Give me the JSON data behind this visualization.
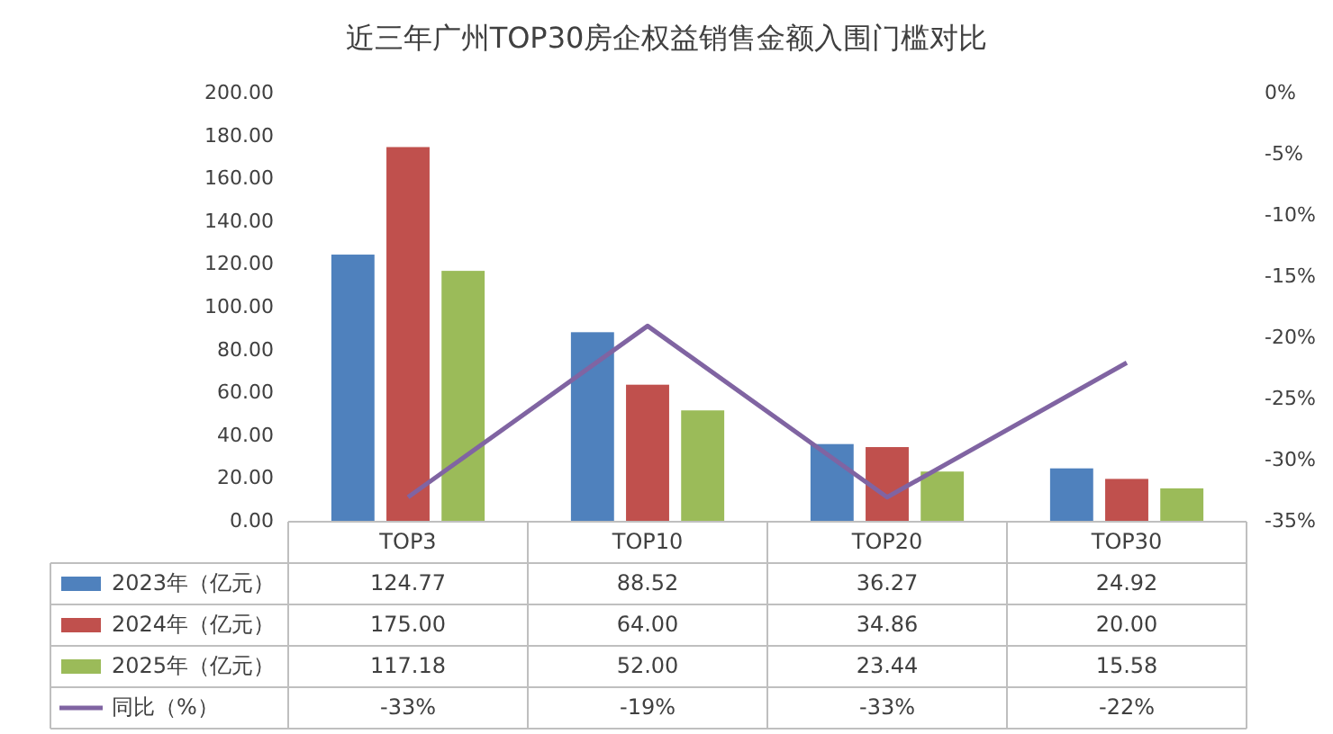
{
  "chart_data": {
    "type": "bar",
    "title": "近三年广州TOP30房企权益销售金额入围门槛对比",
    "categories": [
      "TOP3",
      "TOP10",
      "TOP20",
      "TOP30"
    ],
    "series": [
      {
        "name": "2023年（亿元）",
        "color": "#4f81bd",
        "values": [
          124.77,
          88.52,
          36.27,
          24.92
        ],
        "value_labels": [
          "124.77",
          "88.52",
          "36.27",
          "24.92"
        ]
      },
      {
        "name": "2024年（亿元）",
        "color": "#c0504d",
        "values": [
          175.0,
          64.0,
          34.86,
          20.0
        ],
        "value_labels": [
          "175.00",
          "64.00",
          "34.86",
          "20.00"
        ]
      },
      {
        "name": "2025年（亿元）",
        "color": "#9bbb59",
        "values": [
          117.18,
          52.0,
          23.44,
          15.58
        ],
        "value_labels": [
          "117.18",
          "52.00",
          "23.44",
          "15.58"
        ]
      },
      {
        "name": "同比（%）",
        "type": "line",
        "axis": "y2",
        "color": "#8064a2",
        "values": [
          -33,
          -19,
          -33,
          -22
        ],
        "value_labels": [
          "-33%",
          "-19%",
          "-33%",
          "-22%"
        ]
      }
    ],
    "ylim": [
      0,
      200
    ],
    "yticks": [
      {
        "value": 0,
        "label": "0.00"
      },
      {
        "value": 20,
        "label": "20.00"
      },
      {
        "value": 40,
        "label": "40.00"
      },
      {
        "value": 60,
        "label": "60.00"
      },
      {
        "value": 80,
        "label": "80.00"
      },
      {
        "value": 100,
        "label": "100.00"
      },
      {
        "value": 120,
        "label": "120.00"
      },
      {
        "value": 140,
        "label": "140.00"
      },
      {
        "value": 160,
        "label": "160.00"
      },
      {
        "value": 180,
        "label": "180.00"
      },
      {
        "value": 200,
        "label": "200.00"
      }
    ],
    "y2lim": [
      -35,
      0
    ],
    "y2ticks": [
      {
        "value": 0,
        "label": "0%"
      },
      {
        "value": -5,
        "label": "-5%"
      },
      {
        "value": -10,
        "label": "-10%"
      },
      {
        "value": -15,
        "label": "-15%"
      },
      {
        "value": -20,
        "label": "-20%"
      },
      {
        "value": -25,
        "label": "-25%"
      },
      {
        "value": -30,
        "label": "-30%"
      },
      {
        "value": -35,
        "label": "-35%"
      }
    ],
    "legend": "bottom"
  }
}
